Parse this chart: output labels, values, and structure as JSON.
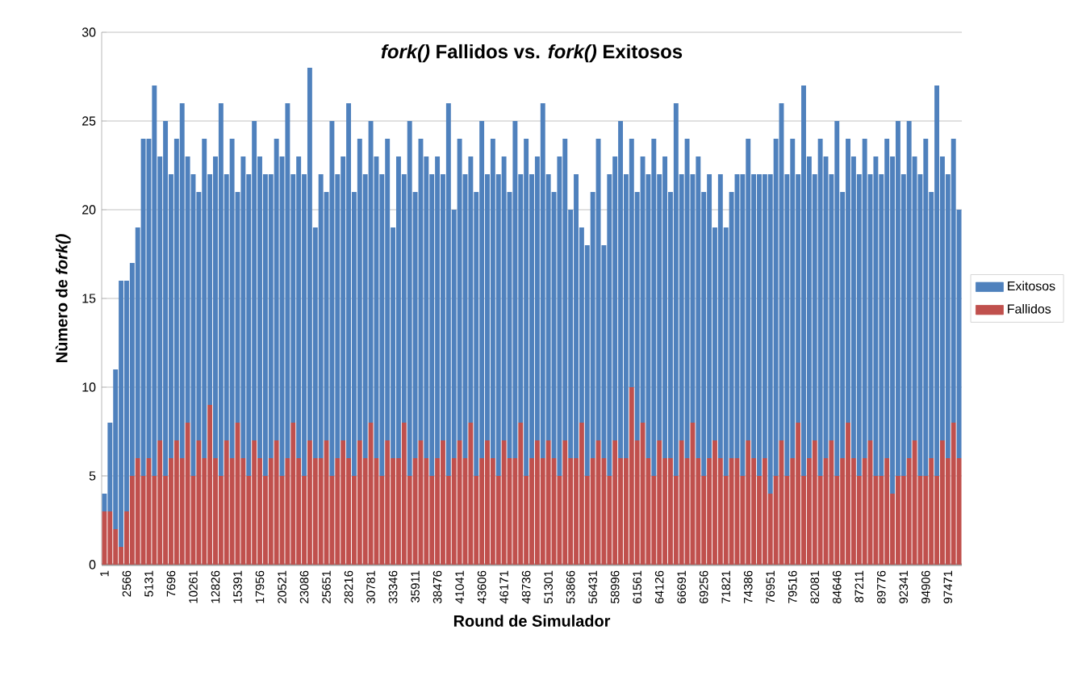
{
  "chart_data": {
    "type": "bar",
    "stacked": true,
    "title": "*fork()* Fallidos vs. *fork()* Exitosos",
    "xlabel": "Round de Simulador",
    "ylabel": "Nùmero de *fork()*",
    "categories": [
      "1",
      null,
      null,
      null,
      "2566",
      null,
      null,
      null,
      "5131",
      null,
      null,
      null,
      "7696",
      null,
      null,
      null,
      "10261",
      null,
      null,
      null,
      "12826",
      null,
      null,
      null,
      "15391",
      null,
      null,
      null,
      "17956",
      null,
      null,
      null,
      "20521",
      null,
      null,
      null,
      "23086",
      null,
      null,
      null,
      "25651",
      null,
      null,
      null,
      "28216",
      null,
      null,
      null,
      "30781",
      null,
      null,
      null,
      "33346",
      null,
      null,
      null,
      "35911",
      null,
      null,
      null,
      "38476",
      null,
      null,
      null,
      "41041",
      null,
      null,
      null,
      "43606",
      null,
      null,
      null,
      "46171",
      null,
      null,
      null,
      "48736",
      null,
      null,
      null,
      "51301",
      null,
      null,
      null,
      "53866",
      null,
      null,
      null,
      "56431",
      null,
      null,
      null,
      "58996",
      null,
      null,
      null,
      "61561",
      null,
      null,
      null,
      "64126",
      null,
      null,
      null,
      "66691",
      null,
      null,
      null,
      "69256",
      null,
      null,
      null,
      "71821",
      null,
      null,
      null,
      "74386",
      null,
      null,
      null,
      "76951",
      null,
      null,
      null,
      "79516",
      null,
      null,
      null,
      "82081",
      null,
      null,
      null,
      "84646",
      null,
      null,
      null,
      "87211",
      null,
      null,
      null,
      "89776",
      null,
      null,
      null,
      "92341",
      null,
      null,
      null,
      "94906",
      null,
      null,
      null,
      "97471",
      null,
      null
    ],
    "series": [
      {
        "name": "Fallidos",
        "color": "#c0504d",
        "values": [
          3,
          3,
          2,
          1,
          3,
          5,
          6,
          5,
          6,
          5,
          7,
          5,
          6,
          7,
          6,
          8,
          5,
          7,
          6,
          9,
          6,
          5,
          7,
          6,
          8,
          6,
          5,
          7,
          6,
          5,
          6,
          7,
          5,
          6,
          8,
          6,
          5,
          7,
          6,
          6,
          7,
          5,
          6,
          7,
          6,
          5,
          7,
          6,
          8,
          6,
          5,
          7,
          6,
          6,
          8,
          5,
          6,
          7,
          6,
          5,
          6,
          7,
          5,
          6,
          7,
          6,
          8,
          5,
          6,
          7,
          6,
          5,
          7,
          6,
          6,
          8,
          5,
          6,
          7,
          6,
          7,
          6,
          5,
          7,
          6,
          6,
          8,
          5,
          6,
          7,
          6,
          5,
          7,
          6,
          6,
          10,
          7,
          8,
          6,
          5,
          7,
          6,
          6,
          5,
          7,
          6,
          8,
          6,
          5,
          6,
          7,
          6,
          5,
          6,
          6,
          5,
          7,
          6,
          5,
          6,
          4,
          5,
          7,
          5,
          6,
          8,
          5,
          6,
          7,
          5,
          6,
          7,
          5,
          6,
          8,
          6,
          5,
          6,
          7,
          5,
          5,
          6,
          4,
          5,
          5,
          6,
          7,
          5,
          5,
          6,
          5,
          7,
          6,
          8,
          6
        ]
      },
      {
        "name": "Exitosos",
        "color": "#4f81bd",
        "values": [
          1,
          5,
          9,
          15,
          13,
          12,
          13,
          19,
          18,
          22,
          16,
          20,
          16,
          17,
          20,
          15,
          17,
          14,
          18,
          13,
          17,
          21,
          15,
          18,
          13,
          17,
          17,
          18,
          17,
          17,
          16,
          17,
          18,
          20,
          14,
          17,
          17,
          21,
          13,
          16,
          14,
          20,
          16,
          16,
          20,
          16,
          17,
          16,
          17,
          17,
          17,
          17,
          13,
          17,
          14,
          20,
          15,
          17,
          17,
          17,
          17,
          15,
          21,
          14,
          17,
          16,
          15,
          16,
          19,
          15,
          18,
          17,
          16,
          15,
          19,
          14,
          19,
          16,
          16,
          20,
          15,
          15,
          18,
          17,
          14,
          16,
          11,
          13,
          15,
          17,
          12,
          17,
          16,
          19,
          16,
          14,
          14,
          15,
          16,
          19,
          15,
          17,
          15,
          21,
          15,
          18,
          14,
          17,
          16,
          16,
          12,
          16,
          14,
          15,
          16,
          17,
          17,
          16,
          17,
          16,
          18,
          19,
          19,
          17,
          18,
          14,
          22,
          17,
          15,
          19,
          17,
          15,
          20,
          15,
          16,
          17,
          17,
          18,
          15,
          18,
          17,
          18,
          19,
          20,
          17,
          19,
          16,
          17,
          19,
          15,
          22,
          16,
          16,
          16,
          14
        ]
      }
    ],
    "ylim": [
      0,
      30
    ],
    "yticks": [
      0,
      5,
      10,
      15,
      20,
      25,
      30
    ],
    "grid": "y",
    "legend": "right"
  }
}
